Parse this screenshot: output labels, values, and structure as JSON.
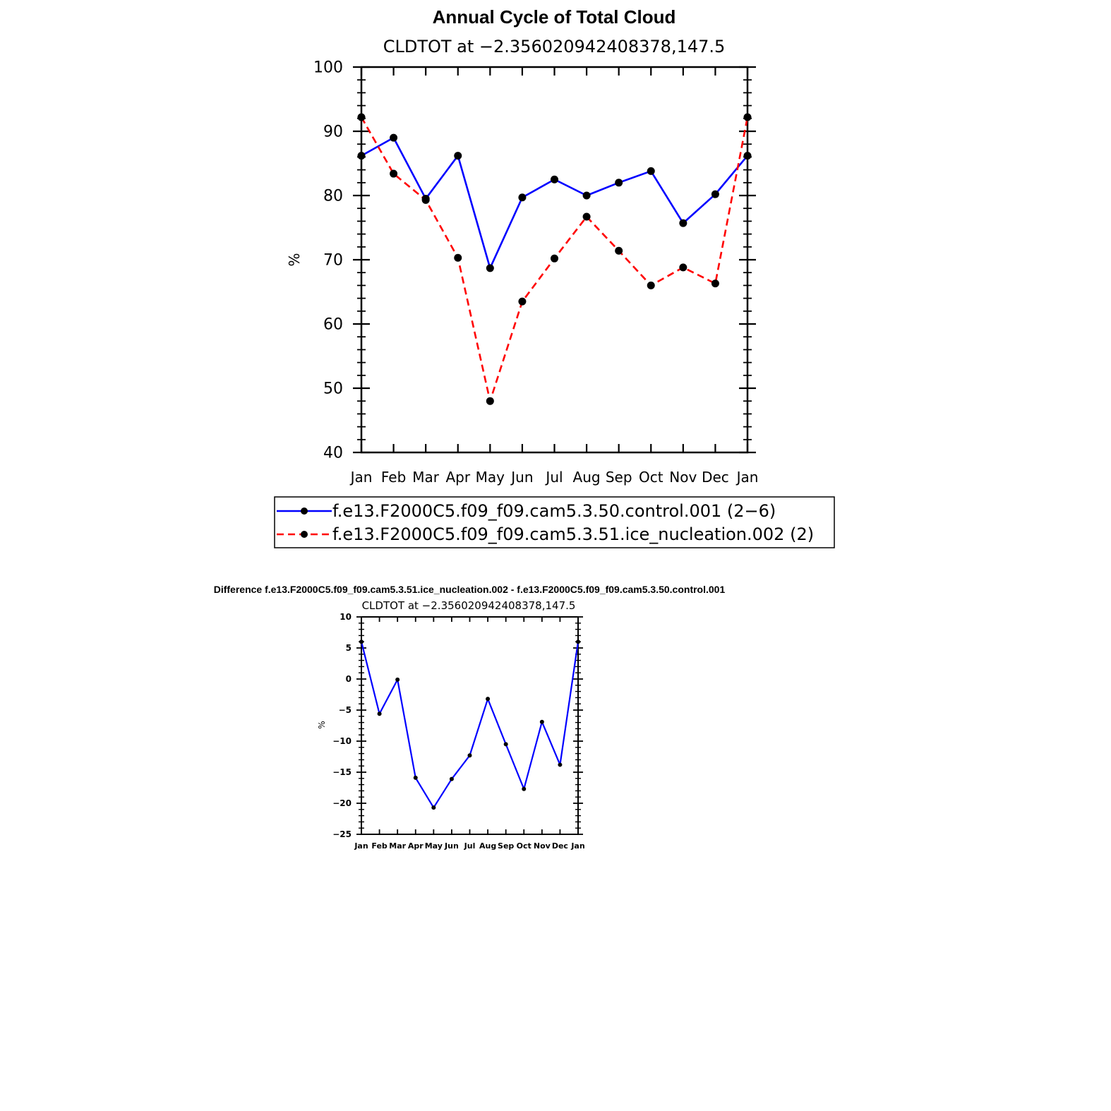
{
  "colors": {
    "control": "#0000ff",
    "ice": "#ff0000",
    "axis": "#000000",
    "marker": "#000000"
  },
  "chart_data": [
    {
      "type": "line",
      "title": "Annual Cycle of Total Cloud",
      "subtitle": "CLDTOT at −2.356020942408378,147.5",
      "xlabel": "",
      "ylabel": "%",
      "categories": [
        "Jan",
        "Feb",
        "Mar",
        "Apr",
        "May",
        "Jun",
        "Jul",
        "Aug",
        "Sep",
        "Oct",
        "Nov",
        "Dec",
        "Jan"
      ],
      "ylim": [
        40,
        100
      ],
      "yticks": [
        "40",
        "50",
        "60",
        "70",
        "80",
        "90",
        "100"
      ],
      "grid": false,
      "legend_position": "bottom",
      "series": [
        {
          "name": "f.e13.F2000C5.f09_f09.cam5.3.50.control.001 (2−6)",
          "style": "solid",
          "color": "#0000ff",
          "values": [
            86.2,
            89.0,
            79.5,
            86.2,
            68.7,
            79.7,
            82.5,
            80.0,
            82.0,
            83.8,
            75.7,
            80.2,
            86.2
          ]
        },
        {
          "name": "f.e13.F2000C5.f09_f09.cam5.3.51.ice_nucleation.002 (2)",
          "style": "dashed",
          "color": "#ff0000",
          "values": [
            92.2,
            83.4,
            79.3,
            70.3,
            48.0,
            63.5,
            70.2,
            76.7,
            71.4,
            66.0,
            68.8,
            66.3,
            92.2
          ]
        }
      ]
    },
    {
      "type": "line",
      "title": "Difference f.e13.F2000C5.f09_f09.cam5.3.51.ice_nucleation.002 - f.e13.F2000C5.f09_f09.cam5.3.50.control.001",
      "subtitle": "CLDTOT at −2.356020942408378,147.5",
      "xlabel": "",
      "ylabel": "%",
      "categories": [
        "Jan",
        "Feb",
        "Mar",
        "Apr",
        "May",
        "Jun",
        "Jul",
        "Aug",
        "Sep",
        "Oct",
        "Nov",
        "Dec",
        "Jan"
      ],
      "ylim": [
        -25,
        10
      ],
      "yticks": [
        "−25",
        "−20",
        "−15",
        "−10",
        "−5",
        "0",
        "5",
        "10"
      ],
      "grid": false,
      "series": [
        {
          "style": "solid",
          "color": "#0000ff",
          "values": [
            6.0,
            -5.6,
            -0.1,
            -15.9,
            -20.7,
            -16.1,
            -12.3,
            -3.2,
            -10.5,
            -17.7,
            -6.9,
            -13.8,
            6.0
          ]
        }
      ]
    }
  ]
}
